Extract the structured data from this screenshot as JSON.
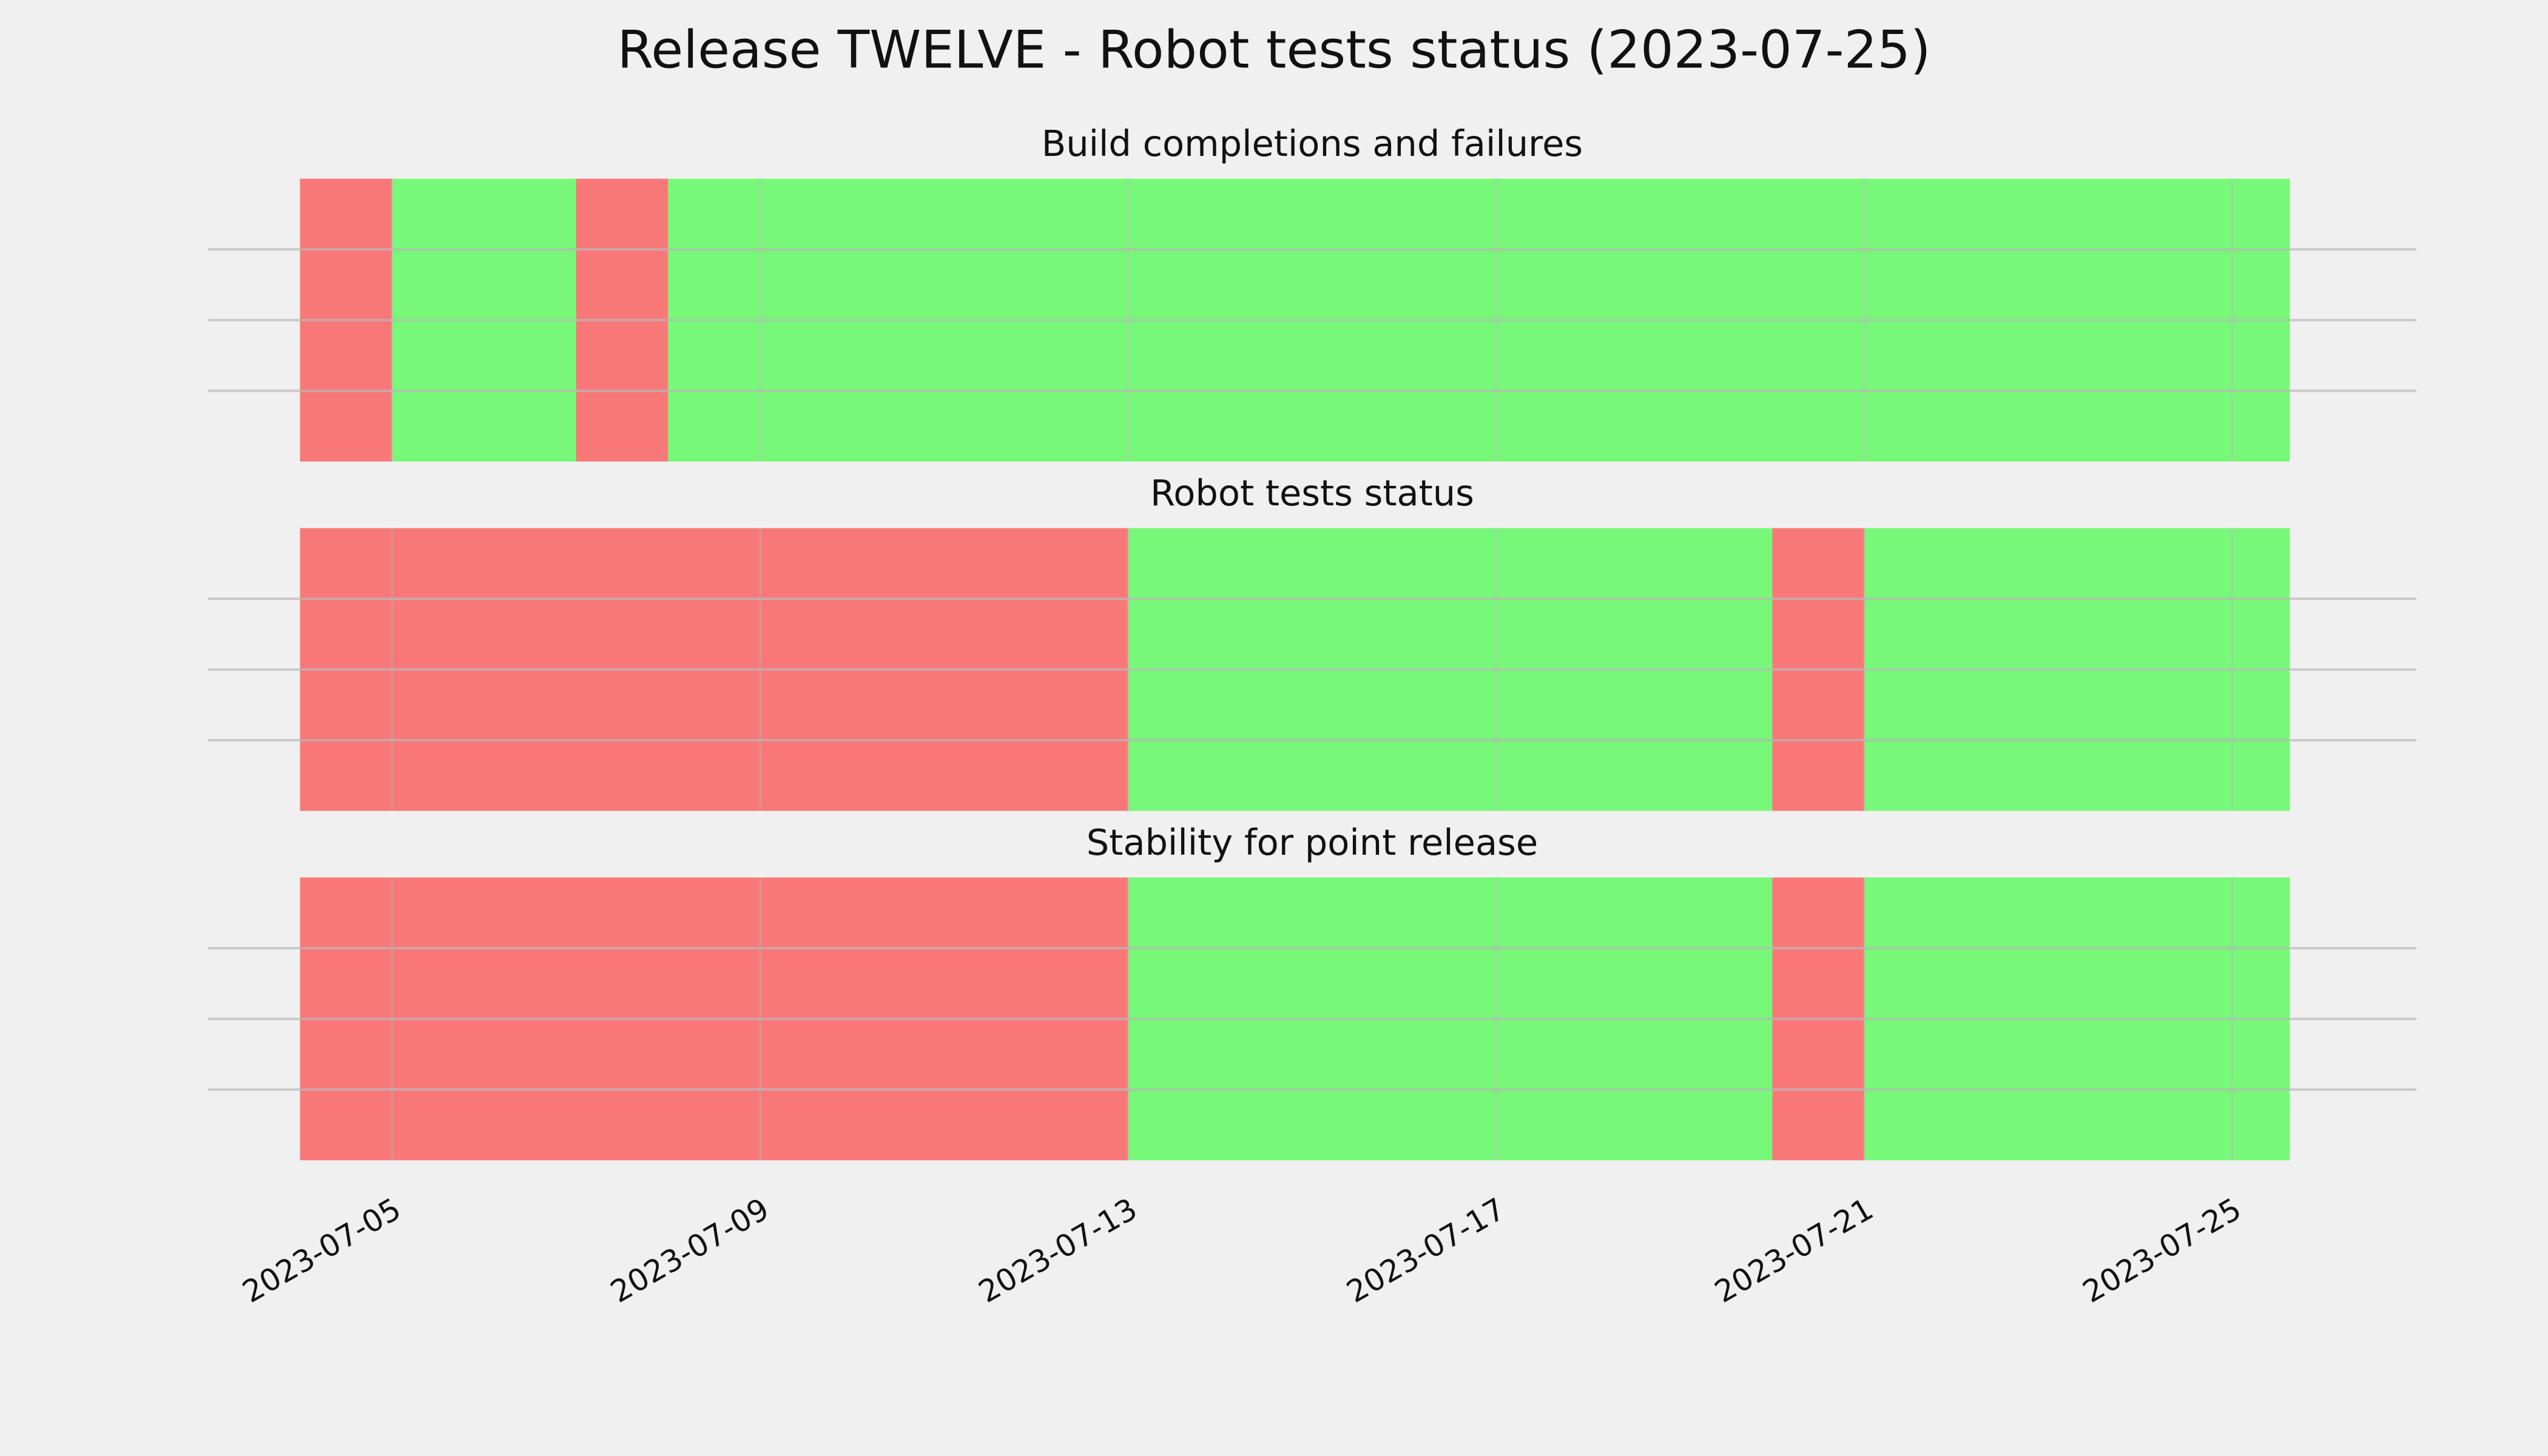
{
  "title": "Release TWELVE - Robot tests status (2023-07-25)",
  "chart_data": [
    {
      "type": "span",
      "title": "Build completions and failures",
      "spans": [
        {
          "start": "2023-07-04",
          "end": "2023-07-05",
          "color": "#f87878"
        },
        {
          "start": "2023-07-05",
          "end": "2023-07-07",
          "color": "#78f878"
        },
        {
          "start": "2023-07-07",
          "end": "2023-07-08",
          "color": "#f87878"
        },
        {
          "start": "2023-07-08",
          "end": "2023-07-25T15:00",
          "color": "#78f878"
        }
      ],
      "xlim": [
        "2023-07-03",
        "2023-07-27"
      ],
      "xticks": [
        "2023-07-05",
        "2023-07-09",
        "2023-07-13",
        "2023-07-17",
        "2023-07-21",
        "2023-07-25"
      ],
      "ylim": [
        0,
        1
      ],
      "yticks": [
        0.25,
        0.5,
        0.75
      ],
      "grid": true
    },
    {
      "type": "span",
      "title": "Robot tests status",
      "spans": [
        {
          "start": "2023-07-04",
          "end": "2023-07-13",
          "color": "#f87878"
        },
        {
          "start": "2023-07-13",
          "end": "2023-07-20",
          "color": "#78f878"
        },
        {
          "start": "2023-07-20",
          "end": "2023-07-21",
          "color": "#f87878"
        },
        {
          "start": "2023-07-21",
          "end": "2023-07-25T15:00",
          "color": "#78f878"
        }
      ],
      "xlim": [
        "2023-07-03",
        "2023-07-27"
      ],
      "xticks": [
        "2023-07-05",
        "2023-07-09",
        "2023-07-13",
        "2023-07-17",
        "2023-07-21",
        "2023-07-25"
      ],
      "ylim": [
        0,
        1
      ],
      "yticks": [
        0.25,
        0.5,
        0.75
      ],
      "grid": true
    },
    {
      "type": "span",
      "title": "Stability for point release",
      "spans": [
        {
          "start": "2023-07-04",
          "end": "2023-07-13",
          "color": "#f87878"
        },
        {
          "start": "2023-07-13",
          "end": "2023-07-20",
          "color": "#78f878"
        },
        {
          "start": "2023-07-20",
          "end": "2023-07-21",
          "color": "#f87878"
        },
        {
          "start": "2023-07-21",
          "end": "2023-07-25T15:00",
          "color": "#78f878"
        }
      ],
      "xlim": [
        "2023-07-03",
        "2023-07-27"
      ],
      "xticks": [
        "2023-07-05",
        "2023-07-09",
        "2023-07-13",
        "2023-07-17",
        "2023-07-21",
        "2023-07-25"
      ],
      "ylim": [
        0,
        1
      ],
      "yticks": [
        0.25,
        0.5,
        0.75
      ],
      "grid": true,
      "show_xtick_labels": true
    }
  ]
}
